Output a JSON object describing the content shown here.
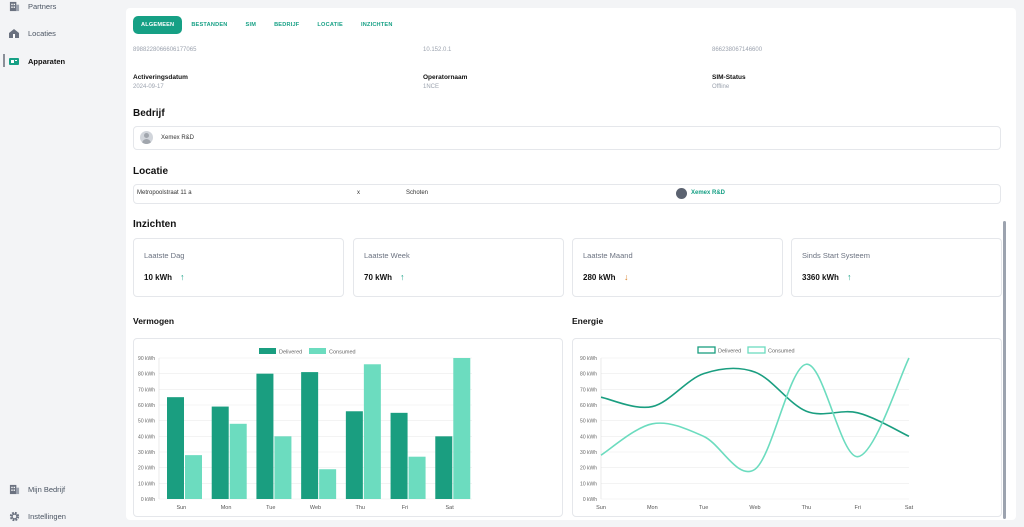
{
  "sidebar": {
    "items": [
      {
        "label": "Partners",
        "icon": "building-icon"
      },
      {
        "label": "Locaties",
        "icon": "house-icon"
      },
      {
        "label": "Apparaten",
        "icon": "device-icon"
      },
      {
        "label": "Mijn Bedrijf",
        "icon": "building-icon"
      },
      {
        "label": "Instellingen",
        "icon": "gear-icon"
      }
    ]
  },
  "tabs": [
    "ALGEMEEN",
    "BESTANDEN",
    "SIM",
    "BEDRIJF",
    "LOCATIE",
    "INZICHTEN"
  ],
  "sim": {
    "iccid": "8988228066606177065",
    "ip": "10.152.0.1",
    "imei": "866238067146600",
    "activation_label": "Activeringsdatum",
    "activation_value": "2024-09-17",
    "operator_label": "Operatornaam",
    "operator_value": "1NCE",
    "status_label": "SIM-Status",
    "status_value": "Offline"
  },
  "company": {
    "title": "Bedrijf",
    "name": "Xemex R&D"
  },
  "location": {
    "title": "Locatie",
    "street": "Metropoolstraat 11 a",
    "x": "x",
    "city": "Schoten",
    "owner": "Xemex R&D"
  },
  "insights": {
    "title": "Inzichten",
    "cards": [
      {
        "title": "Laatste Dag",
        "value": "10 kWh",
        "trend": "up"
      },
      {
        "title": "Laatste Week",
        "value": "70 kWh",
        "trend": "up"
      },
      {
        "title": "Laatste Maand",
        "value": "280 kWh",
        "trend": "down"
      },
      {
        "title": "Sinds Start Systeem",
        "value": "3360 kWh",
        "trend": "up"
      }
    ]
  },
  "colors": {
    "accent": "#16a085",
    "delivered": "#1a9e80",
    "consumed": "#6cdcbf",
    "down": "#d9822b"
  },
  "chart_data": [
    {
      "type": "bar",
      "title": "Vermogen",
      "categories": [
        "Sun",
        "Mon",
        "Tue",
        "Web",
        "Thu",
        "Fri",
        "Sat"
      ],
      "series": [
        {
          "name": "Delivered",
          "values": [
            65,
            59,
            80,
            81,
            56,
            55,
            40
          ]
        },
        {
          "name": "Consumed",
          "values": [
            28,
            48,
            40,
            19,
            86,
            27,
            90
          ]
        }
      ],
      "ylim": [
        0,
        90
      ],
      "yticks": [
        "0 kWh",
        "10 kWh",
        "20 kWh",
        "30 kWh",
        "40 kWh",
        "50 kWh",
        "60 kWh",
        "70 kWh",
        "80 kWh",
        "90 kWh"
      ],
      "legend": "top-center"
    },
    {
      "type": "line",
      "title": "Energie",
      "categories": [
        "Sun",
        "Mon",
        "Tue",
        "Web",
        "Thu",
        "Fri",
        "Sat"
      ],
      "series": [
        {
          "name": "Delivered",
          "values": [
            65,
            59,
            80,
            81,
            56,
            55,
            40
          ]
        },
        {
          "name": "Consumed",
          "values": [
            28,
            48,
            40,
            19,
            86,
            27,
            90
          ]
        }
      ],
      "ylim": [
        0,
        90
      ],
      "yticks": [
        "0 kWh",
        "10 kWh",
        "20 kWh",
        "30 kWh",
        "40 kWh",
        "50 kWh",
        "60 kWh",
        "70 kWh",
        "80 kWh",
        "90 kWh"
      ],
      "legend": "top-center"
    }
  ]
}
